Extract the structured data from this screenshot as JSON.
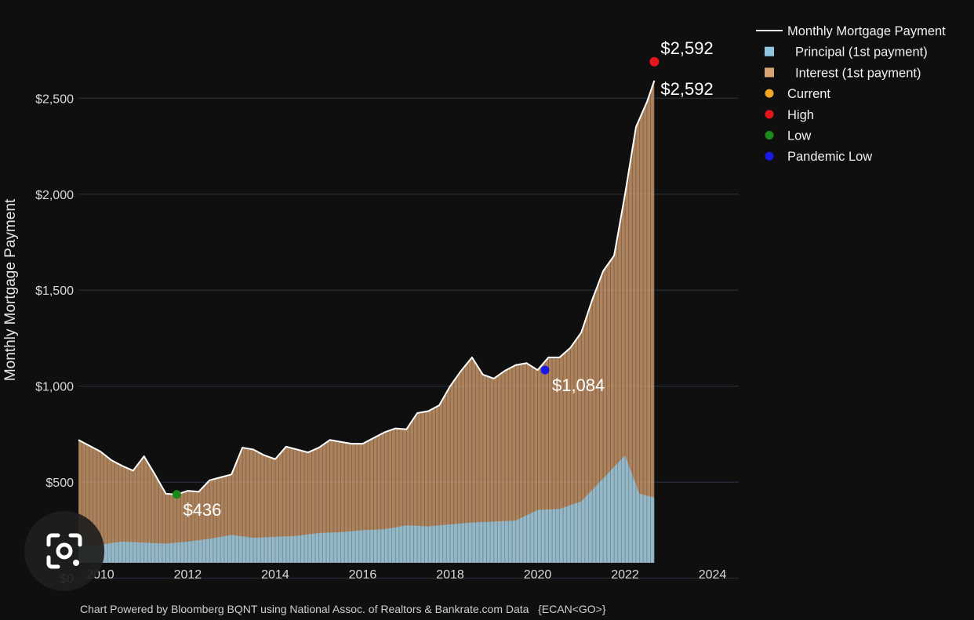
{
  "chart_data": {
    "type": "area",
    "title": "",
    "ylabel": "Monthly Mortgage Payment",
    "xlabel": "",
    "xlim": [
      2009.5,
      2024.6
    ],
    "ylim": [
      80,
      2930
    ],
    "x_ticks": [
      "2010",
      "2012",
      "2014",
      "2016",
      "2018",
      "2020",
      "2022",
      "2024"
    ],
    "y_ticks": [
      "$0",
      "$500",
      "$1,000",
      "$1,500",
      "$2,000",
      "$2,500"
    ],
    "grid": true,
    "legend_position": "right",
    "legend": [
      {
        "label": "Monthly Mortgage Payment",
        "marker": "line",
        "color": "#ffffff"
      },
      {
        "label": "Principal (1st payment)",
        "marker": "square",
        "color": "#8fc6e2"
      },
      {
        "label": "Interest (1st payment)",
        "marker": "square",
        "color": "#d9a373"
      },
      {
        "label": "Current",
        "marker": "dot",
        "color": "#f5a623"
      },
      {
        "label": "High",
        "marker": "dot",
        "color": "#e3161b"
      },
      {
        "label": "Low",
        "marker": "dot",
        "color": "#1b8a1b"
      },
      {
        "label": "Pandemic Low",
        "marker": "dot",
        "color": "#1a1ae6"
      }
    ],
    "series": [
      {
        "name": "Monthly Mortgage Payment",
        "x": [
          2009.5,
          2009.75,
          2010,
          2010.25,
          2010.5,
          2010.75,
          2011,
          2011.25,
          2011.5,
          2011.75,
          2012,
          2012.25,
          2012.5,
          2012.75,
          2013,
          2013.25,
          2013.5,
          2013.75,
          2014,
          2014.25,
          2014.5,
          2014.75,
          2015,
          2015.25,
          2015.5,
          2015.75,
          2016,
          2016.25,
          2016.5,
          2016.75,
          2017,
          2017.25,
          2017.5,
          2017.75,
          2018,
          2018.25,
          2018.5,
          2018.75,
          2019,
          2019.25,
          2019.5,
          2019.75,
          2020,
          2020.25,
          2020.5,
          2020.75,
          2021,
          2021.25,
          2021.5,
          2021.75,
          2022,
          2022.25,
          2022.5,
          2022.67
        ],
        "values": [
          720,
          690,
          660,
          615,
          585,
          560,
          635,
          540,
          440,
          436,
          455,
          450,
          510,
          525,
          540,
          680,
          670,
          640,
          620,
          685,
          670,
          655,
          680,
          720,
          710,
          700,
          700,
          730,
          760,
          780,
          775,
          860,
          870,
          900,
          1000,
          1080,
          1150,
          1060,
          1040,
          1080,
          1110,
          1120,
          1084,
          1150,
          1150,
          1200,
          1280,
          1450,
          1600,
          1680,
          2000,
          2350,
          2480,
          2592
        ]
      },
      {
        "name": "Principal (1st payment)",
        "x": [
          2009.5,
          2010,
          2010.5,
          2011,
          2011.5,
          2012,
          2012.5,
          2013,
          2013.5,
          2014,
          2014.5,
          2015,
          2015.5,
          2016,
          2016.5,
          2017,
          2017.5,
          2018,
          2018.5,
          2019,
          2019.5,
          2020,
          2020.5,
          2021,
          2021.5,
          2022,
          2022.33,
          2022.67
        ],
        "values": [
          170,
          175,
          190,
          185,
          180,
          190,
          205,
          225,
          210,
          215,
          220,
          235,
          240,
          250,
          255,
          275,
          270,
          280,
          290,
          295,
          300,
          355,
          360,
          400,
          520,
          640,
          440,
          420
        ]
      }
    ],
    "annotations": [
      {
        "label": "$2,592",
        "x": 2022.67,
        "y": 2592,
        "kind": "High"
      },
      {
        "label": "$2,592",
        "x": 2022.67,
        "y": 2592,
        "kind": "Current"
      },
      {
        "label": "$436",
        "x": 2011.75,
        "y": 436,
        "kind": "Low"
      },
      {
        "label": "$1,084",
        "x": 2020.17,
        "y": 1084,
        "kind": "Pandemic Low"
      }
    ]
  },
  "footer": "Chart Powered by Bloomberg BQNT using National Assoc. of Realtors & Bankrate.com Data   {ECAN<GO>}"
}
